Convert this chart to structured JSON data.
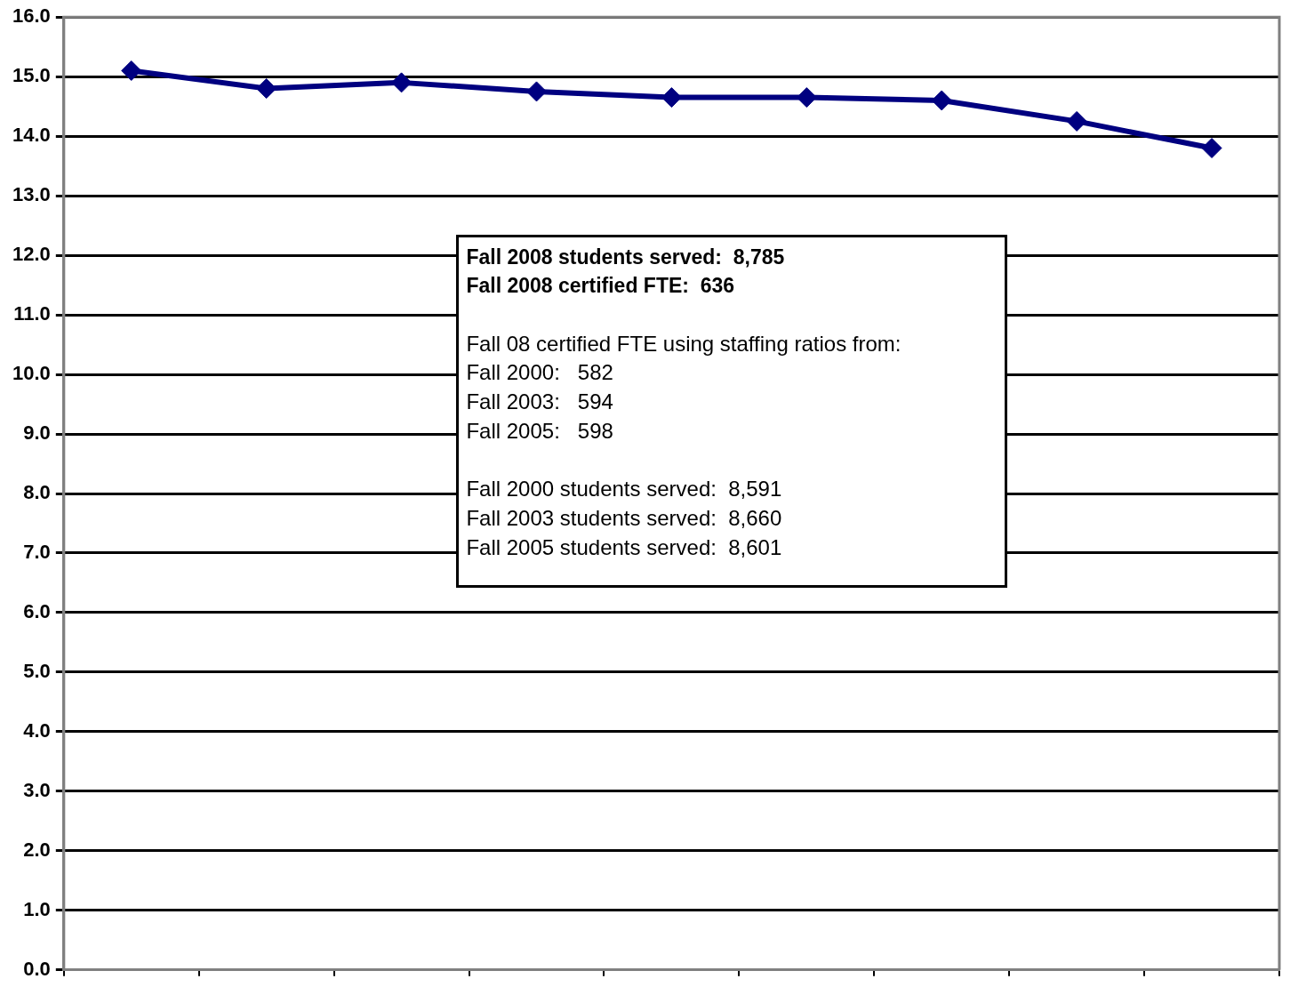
{
  "chart_data": {
    "type": "line",
    "categories": [
      null,
      null,
      null,
      null,
      null,
      null,
      null,
      null,
      null
    ],
    "values": [
      15.1,
      14.8,
      14.9,
      14.75,
      14.65,
      14.65,
      14.6,
      14.25,
      13.8
    ],
    "color": "#000080",
    "marker": "diamond",
    "line_style": "solid",
    "ylim": [
      0,
      16
    ],
    "yticks": [
      {
        "value": 0,
        "label": "0.0"
      },
      {
        "value": 1,
        "label": "1.0"
      },
      {
        "value": 2,
        "label": "2.0"
      },
      {
        "value": 3,
        "label": "3.0"
      },
      {
        "value": 4,
        "label": "4.0"
      },
      {
        "value": 5,
        "label": "5.0"
      },
      {
        "value": 6,
        "label": "6.0"
      },
      {
        "value": 7,
        "label": "7.0"
      },
      {
        "value": 8,
        "label": "8.0"
      },
      {
        "value": 9,
        "label": "9.0"
      },
      {
        "value": 10,
        "label": "10.0"
      },
      {
        "value": 11,
        "label": "11.0"
      },
      {
        "value": 12,
        "label": "12.0"
      },
      {
        "value": 13,
        "label": "13.0"
      },
      {
        "value": 14,
        "label": "14.0"
      },
      {
        "value": 15,
        "label": "15.0"
      },
      {
        "value": 16,
        "label": "16.0"
      }
    ],
    "grid": "y",
    "tick_labels": "y",
    "annotations": [
      "Fall 2008 students served:  8,785\nFall 2008 certified FTE:  636",
      "Fall 08 certified FTE using staffing ratios from:\nFall 2000:   582\nFall 2003:   594\nFall 2005:   598",
      "Fall 2000 students served:  8,591\nFall 2003 students served:  8,660\nFall 2005 students served:  8,601"
    ]
  }
}
